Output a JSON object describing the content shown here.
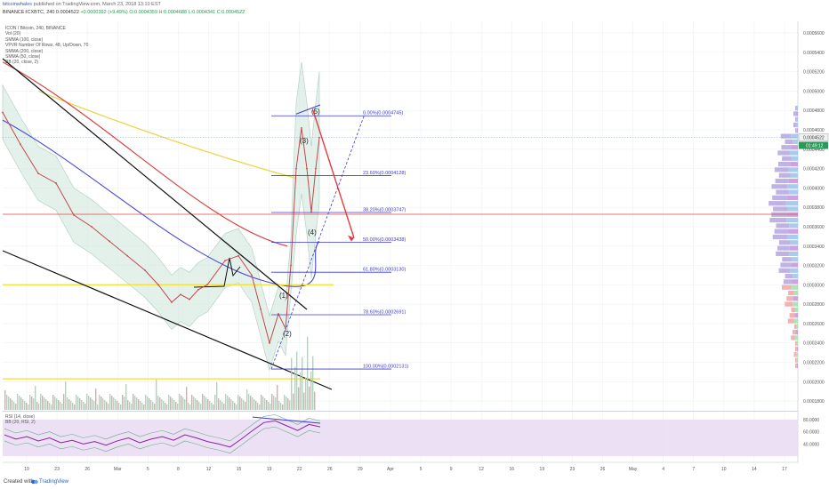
{
  "header": {
    "author": "bitcoinwhales",
    "published_text": "published on TradingView.com, March 23, 2018 13:10 EST",
    "symbol_line": "BINANCE:ICXBTC, 240",
    "ohlc": {
      "close_label": "0.0004522",
      "change_label": "+0.0000392 (+9.49%)",
      "o_label": "O:0.0004359",
      "h_label": "H:0.0004688",
      "l_label": "L:0.0004341",
      "c_label": "C:0.0004522"
    }
  },
  "legend": {
    "items": [
      "ICON / Bitcoin, 240, BINANCE",
      "Vol (20)",
      "SMMA (100, close)",
      "VPVR Number Of Rows, 48, Up/Down, 70",
      "SMMA (200, close)",
      "SMMA (50, close)",
      "BB (20, close, 2)"
    ]
  },
  "rsi_legend": {
    "items": [
      "RSI (14, close)",
      "BB (20, RSI, 2)"
    ]
  },
  "footer": {
    "created": "Created with",
    "brand": "TradingView"
  },
  "chart_data": {
    "type": "line",
    "title": "ICON / Bitcoin, 240, BINANCE",
    "y_axis": {
      "ticks": [
        "0.0005600",
        "0.0005400",
        "0.0005200",
        "0.0005000",
        "0.0004800",
        "0.0004600",
        "0.0004400",
        "0.0004200",
        "0.0004000",
        "0.0003800",
        "0.0003600",
        "0.0003400",
        "0.0003200",
        "0.0003000",
        "0.0002800",
        "0.0002600",
        "0.0002400",
        "0.0002200",
        "0.0002000",
        "0.0001800"
      ],
      "last_price_label": "0.0004522",
      "countdown_label": "01:49:12"
    },
    "x_axis": {
      "ticks": [
        "19",
        "23",
        "26",
        "Mar",
        "5",
        "8",
        "12",
        "15",
        "19",
        "22",
        "26",
        "29",
        "Apr",
        "5",
        "9",
        "12",
        "16",
        "19",
        "23",
        "26",
        "May",
        "4",
        "7",
        "10",
        "14",
        "17"
      ]
    },
    "price_series": {
      "name": "ICXBTC",
      "x": [
        0,
        20,
        40,
        60,
        80,
        100,
        120,
        140,
        160,
        175,
        190,
        200,
        210,
        220,
        230,
        250,
        265,
        280,
        290,
        300,
        310,
        318,
        324,
        330,
        336,
        342,
        347,
        352,
        356
      ],
      "y": [
        0.000478,
        0.000445,
        0.000415,
        0.000405,
        0.000372,
        0.00036,
        0.000345,
        0.00033,
        0.000315,
        0.0003,
        0.000282,
        0.00029,
        0.000285,
        0.000295,
        0.0003,
        0.000325,
        0.00033,
        0.00031,
        0.000275,
        0.00024,
        0.00027,
        0.000255,
        0.00032,
        0.00042,
        0.000462,
        0.00042,
        0.000375,
        0.00042,
        0.000452
      ]
    },
    "fib_levels": [
      {
        "label": "0.00%(0.0004745)",
        "price": 0.0004745
      },
      {
        "label": "23.60%(0.0004128)",
        "price": 0.0004128
      },
      {
        "label": "38.20%(0.0003747)",
        "price": 0.0003747
      },
      {
        "label": "50.00%(0.0003438)",
        "price": 0.0003438
      },
      {
        "label": "61.80%(0.0003130)",
        "price": 0.000313
      },
      {
        "label": "78.60%(0.0002691)",
        "price": 0.0002691
      },
      {
        "label": "100.00%(0.0002131)",
        "price": 0.0002131
      }
    ],
    "wave_labels": [
      "(1)",
      "(2)",
      "(3)",
      "(4)",
      "(5)"
    ],
    "rsi": {
      "ticks": [
        "80.0000",
        "60.0000",
        "40.0000"
      ],
      "overbought": 80,
      "oversold": 20,
      "values": [
        55,
        48,
        52,
        45,
        50,
        42,
        46,
        40,
        44,
        38,
        45,
        50,
        42,
        48,
        52,
        46,
        55,
        50,
        44,
        40,
        35,
        48,
        62,
        75,
        78,
        70,
        62,
        72,
        68
      ]
    },
    "colors": {
      "fib": "#3a3ad8",
      "price": "#c24a4a",
      "smma200": "#e6d84a",
      "smma100": "#d94141",
      "smma50": "#4a4ad8",
      "bb_fill": "#cfe6dc",
      "horizontal_red": "#e04848",
      "horizontal_yellow": "#f2e13c",
      "rsi_line": "#8b1fa6",
      "rsi_band": "#e7d9f1",
      "projection_arrow": "#e43a3a"
    },
    "grid": true
  }
}
